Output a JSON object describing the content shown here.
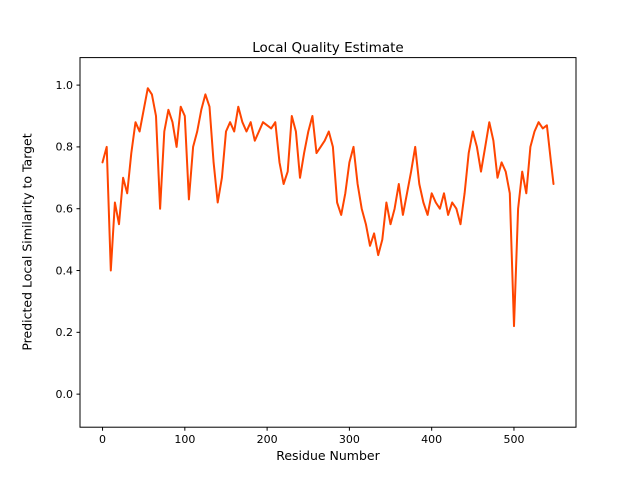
{
  "figure": {
    "background": "#ffffff",
    "text_color": "#000000"
  },
  "chart_data": {
    "type": "line",
    "title": "Local Quality Estimate",
    "xlabel": "Residue Number",
    "ylabel": "Predicted Local Similarity to Target",
    "line_color": "#ff4500",
    "line_width": 2,
    "grid": false,
    "legend": "none",
    "xlim": [
      -27.4,
      575.4
    ],
    "ylim": [
      -0.107,
      1.089
    ],
    "xticks": [
      0,
      100,
      200,
      300,
      400,
      500
    ],
    "xtick_labels": [
      "0",
      "100",
      "200",
      "300",
      "400",
      "500"
    ],
    "yticks": [
      0.0,
      0.2,
      0.4,
      0.6,
      0.8,
      1.0
    ],
    "ytick_labels": [
      "0.0",
      "0.2",
      "0.4",
      "0.6",
      "0.8",
      "1.0"
    ],
    "x": [
      0,
      5,
      10,
      15,
      20,
      25,
      30,
      35,
      40,
      45,
      50,
      55,
      60,
      65,
      70,
      75,
      80,
      85,
      90,
      95,
      100,
      105,
      110,
      115,
      120,
      125,
      130,
      135,
      140,
      145,
      150,
      155,
      160,
      165,
      170,
      175,
      180,
      185,
      190,
      195,
      200,
      205,
      210,
      215,
      220,
      225,
      230,
      235,
      240,
      245,
      250,
      255,
      260,
      265,
      270,
      275,
      280,
      285,
      290,
      295,
      300,
      305,
      310,
      315,
      320,
      325,
      330,
      335,
      340,
      345,
      350,
      355,
      360,
      365,
      370,
      375,
      380,
      385,
      390,
      395,
      400,
      405,
      410,
      415,
      420,
      425,
      430,
      435,
      440,
      445,
      450,
      455,
      460,
      465,
      470,
      475,
      480,
      485,
      490,
      495,
      500,
      505,
      510,
      515,
      520,
      525,
      530,
      535,
      540,
      545,
      548
    ],
    "y": [
      0.75,
      0.8,
      0.4,
      0.62,
      0.55,
      0.7,
      0.65,
      0.78,
      0.88,
      0.85,
      0.92,
      0.99,
      0.97,
      0.9,
      0.6,
      0.85,
      0.92,
      0.88,
      0.8,
      0.93,
      0.9,
      0.63,
      0.8,
      0.85,
      0.92,
      0.97,
      0.93,
      0.75,
      0.62,
      0.7,
      0.85,
      0.88,
      0.85,
      0.93,
      0.88,
      0.85,
      0.88,
      0.82,
      0.85,
      0.88,
      0.87,
      0.86,
      0.88,
      0.75,
      0.68,
      0.72,
      0.9,
      0.85,
      0.7,
      0.78,
      0.85,
      0.9,
      0.78,
      0.8,
      0.82,
      0.85,
      0.8,
      0.62,
      0.58,
      0.65,
      0.75,
      0.8,
      0.68,
      0.6,
      0.55,
      0.48,
      0.52,
      0.45,
      0.5,
      0.62,
      0.55,
      0.6,
      0.68,
      0.58,
      0.65,
      0.72,
      0.8,
      0.68,
      0.62,
      0.58,
      0.65,
      0.62,
      0.6,
      0.65,
      0.58,
      0.62,
      0.6,
      0.55,
      0.65,
      0.78,
      0.85,
      0.8,
      0.72,
      0.8,
      0.88,
      0.82,
      0.7,
      0.75,
      0.72,
      0.65,
      0.22,
      0.6,
      0.72,
      0.65,
      0.8,
      0.85,
      0.88,
      0.86,
      0.87,
      0.75,
      0.68
    ]
  }
}
